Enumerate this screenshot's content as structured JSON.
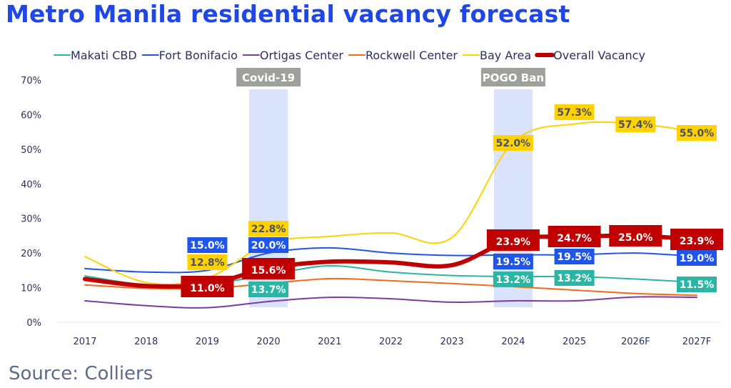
{
  "title": "Metro Manila residential vacancy forecast",
  "source": "Source: Colliers",
  "chart_data": {
    "type": "line",
    "title": "Metro Manila residential vacancy forecast",
    "xlabel": "",
    "ylabel": "",
    "categories": [
      "2017",
      "2018",
      "2019",
      "2020",
      "2021",
      "2022",
      "2023",
      "2024",
      "2025",
      "2026F",
      "2027F"
    ],
    "ylim": [
      0,
      70
    ],
    "yticks": [
      "0%",
      "10%",
      "20%",
      "30%",
      "40%",
      "50%",
      "60%",
      "70%"
    ],
    "legend_position": "top",
    "annotations": [
      {
        "text": "Covid-19",
        "category": "2020"
      },
      {
        "text": "POGO Ban",
        "category": "2024"
      }
    ],
    "series": [
      {
        "name": "Makati CBD",
        "color": "#2bb5a5",
        "width": 2,
        "values": [
          13.4,
          10.8,
          11.0,
          13.7,
          16.3,
          14.5,
          13.5,
          13.2,
          13.2,
          12.5,
          11.5
        ],
        "labels": [
          null,
          null,
          null,
          "13.7%",
          null,
          null,
          null,
          "13.2%",
          "13.2%",
          null,
          "11.5%"
        ],
        "label_text_color": "#ffffff"
      },
      {
        "name": "Fort Bonifacio",
        "color": "#1f55e8",
        "width": 2,
        "values": [
          15.5,
          14.5,
          15.0,
          20.0,
          21.5,
          20.0,
          19.3,
          19.5,
          19.5,
          20.0,
          19.0
        ],
        "labels": [
          null,
          null,
          "15.0%",
          "20.0%",
          null,
          null,
          null,
          "19.5%",
          "19.5%",
          null,
          "19.0%"
        ],
        "label_text_color": "#ffffff"
      },
      {
        "name": "Ortigas Center",
        "color": "#7a3aa8",
        "width": 2,
        "values": [
          6.2,
          4.8,
          4.2,
          6.0,
          7.2,
          6.8,
          5.8,
          6.2,
          6.2,
          7.3,
          7.2
        ],
        "labels": [
          null,
          null,
          null,
          null,
          null,
          null,
          null,
          null,
          null,
          null,
          null
        ],
        "label_text_color": "#ffffff"
      },
      {
        "name": "Rockwell Center",
        "color": "#f26a1b",
        "width": 2,
        "values": [
          10.8,
          9.8,
          9.8,
          11.2,
          12.6,
          12.0,
          11.2,
          10.3,
          9.3,
          8.3,
          7.8
        ],
        "labels": [
          null,
          null,
          null,
          null,
          null,
          null,
          null,
          null,
          null,
          null,
          null
        ],
        "label_text_color": "#ffffff"
      },
      {
        "name": "Bay Area",
        "color": "#ffd200",
        "width": 2,
        "values": [
          19.0,
          11.5,
          12.8,
          22.8,
          24.8,
          25.8,
          24.5,
          52.0,
          57.3,
          57.4,
          55.0
        ],
        "labels": [
          null,
          null,
          "12.8%",
          "22.8%",
          null,
          null,
          null,
          "52.0%",
          "57.3%",
          "57.4%",
          "55.0%"
        ],
        "label_text_color": "#4a4f66"
      },
      {
        "name": "Overall Vacancy",
        "color": "#c00000",
        "width": 6,
        "values": [
          12.5,
          10.5,
          11.0,
          15.6,
          17.5,
          17.3,
          16.5,
          23.9,
          24.7,
          25.0,
          23.9
        ],
        "labels": [
          null,
          null,
          "11.0%",
          "15.6%",
          null,
          null,
          null,
          "23.9%",
          "24.7%",
          "25.0%",
          "23.9%"
        ],
        "label_text_color": "#ffffff"
      }
    ]
  }
}
